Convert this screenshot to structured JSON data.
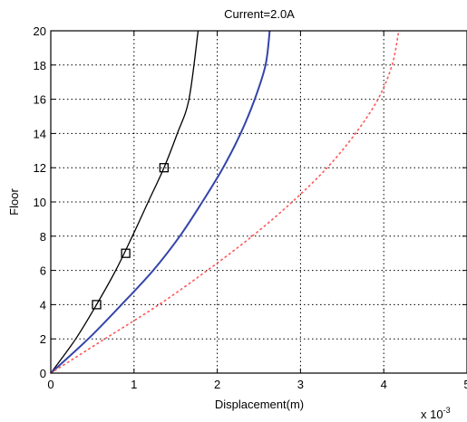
{
  "chart_data": {
    "type": "line",
    "title": "Current=2.0A",
    "xlabel": "Displacement(m)",
    "ylabel": "Floor",
    "x_multiplier_label": "x 10",
    "x_multiplier_exponent": "-3",
    "xlim": [
      0,
      5
    ],
    "ylim": [
      0,
      20
    ],
    "xticks": [
      "0",
      "1",
      "2",
      "3",
      "4",
      "5"
    ],
    "yticks": [
      "0",
      "2",
      "4",
      "6",
      "8",
      "10",
      "12",
      "14",
      "16",
      "18",
      "20"
    ],
    "grid": true,
    "series": [
      {
        "color": "#000000",
        "style": "solid",
        "x": [
          0,
          0.3,
          0.55,
          0.78,
          0.98,
          1.17,
          1.36,
          1.52,
          1.66,
          1.77
        ],
        "y": [
          0,
          2,
          4,
          6,
          8,
          10,
          12,
          14,
          16,
          20
        ],
        "markers": {
          "shape": "square",
          "x": [
            0.55,
            0.9,
            1.36
          ],
          "y": [
            4,
            7,
            12
          ]
        }
      },
      {
        "color": "#3344aa",
        "style": "solid",
        "x": [
          0,
          0.45,
          0.85,
          1.23,
          1.55,
          1.82,
          2.07,
          2.28,
          2.45,
          2.58,
          2.63
        ],
        "y": [
          0,
          2,
          4,
          6,
          8,
          10,
          12,
          14,
          16,
          18,
          20
        ]
      },
      {
        "color": "#ff5555",
        "style": "dotted",
        "x": [
          0,
          0.65,
          1.3,
          1.88,
          2.42,
          2.9,
          3.32,
          3.66,
          3.93,
          4.1,
          4.18
        ],
        "y": [
          0,
          2,
          4,
          6,
          8,
          10,
          12,
          14,
          16,
          18,
          20
        ]
      }
    ]
  }
}
